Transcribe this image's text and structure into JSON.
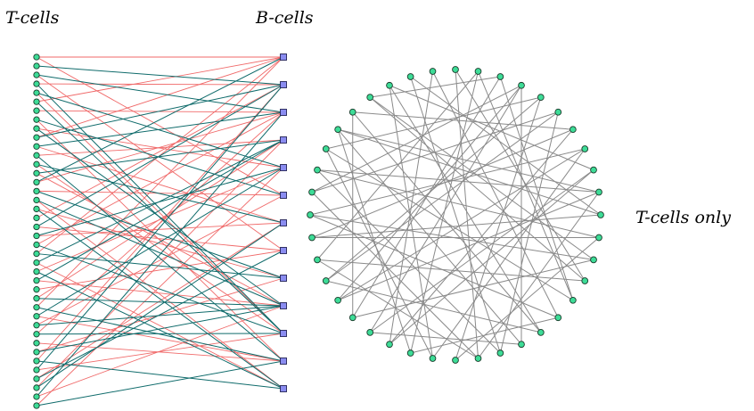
{
  "labels": {
    "left": "T-cells",
    "middle": "B-cells",
    "right": "T-cells only"
  },
  "colors": {
    "t_node": "#3ddc97",
    "t_node_stroke": "#1a3a2a",
    "b_node": "#8a8cf0",
    "b_node_stroke": "#222255",
    "edge_red": "#f06a6a",
    "edge_teal": "#0f6b6b",
    "edge_gray": "#8a8a8a"
  },
  "bipartite": {
    "t_count": 40,
    "b_count": 13,
    "red_edges": [
      [
        0,
        5
      ],
      [
        0,
        0
      ],
      [
        2,
        7
      ],
      [
        3,
        1
      ],
      [
        5,
        0
      ],
      [
        6,
        2
      ],
      [
        8,
        4
      ],
      [
        9,
        0
      ],
      [
        10,
        6
      ],
      [
        11,
        3
      ],
      [
        13,
        9
      ],
      [
        14,
        2
      ],
      [
        15,
        5
      ],
      [
        17,
        8
      ],
      [
        18,
        1
      ],
      [
        20,
        6
      ],
      [
        22,
        0
      ],
      [
        23,
        12
      ],
      [
        24,
        4
      ],
      [
        26,
        7
      ],
      [
        27,
        3
      ],
      [
        29,
        11
      ],
      [
        30,
        5
      ],
      [
        31,
        2
      ],
      [
        33,
        8
      ],
      [
        34,
        1
      ],
      [
        35,
        10
      ],
      [
        36,
        6
      ],
      [
        38,
        9
      ],
      [
        39,
        4
      ],
      [
        12,
        10
      ],
      [
        16,
        12
      ],
      [
        19,
        7
      ],
      [
        25,
        9
      ],
      [
        28,
        0
      ],
      [
        32,
        11
      ],
      [
        37,
        3
      ],
      [
        21,
        2
      ],
      [
        7,
        11
      ],
      [
        4,
        10
      ]
    ],
    "teal_edges": [
      [
        1,
        1
      ],
      [
        2,
        2
      ],
      [
        4,
        4
      ],
      [
        5,
        10
      ],
      [
        7,
        5
      ],
      [
        8,
        9
      ],
      [
        9,
        1
      ],
      [
        10,
        2
      ],
      [
        11,
        11
      ],
      [
        12,
        6
      ],
      [
        13,
        3
      ],
      [
        14,
        0
      ],
      [
        16,
        9
      ],
      [
        17,
        12
      ],
      [
        19,
        1
      ],
      [
        20,
        4
      ],
      [
        21,
        10
      ],
      [
        22,
        8
      ],
      [
        24,
        12
      ],
      [
        25,
        3
      ],
      [
        27,
        9
      ],
      [
        28,
        11
      ],
      [
        29,
        4
      ],
      [
        31,
        10
      ],
      [
        33,
        9
      ],
      [
        34,
        12
      ],
      [
        36,
        7
      ],
      [
        37,
        6
      ],
      [
        38,
        2
      ],
      [
        39,
        11
      ],
      [
        3,
        10
      ],
      [
        15,
        8
      ],
      [
        23,
        3
      ],
      [
        30,
        9
      ],
      [
        35,
        1
      ]
    ]
  },
  "circle": {
    "node_count": 40,
    "edges": [
      [
        0,
        13
      ],
      [
        0,
        19
      ],
      [
        1,
        22
      ],
      [
        1,
        28
      ],
      [
        2,
        14
      ],
      [
        2,
        25
      ],
      [
        3,
        17
      ],
      [
        3,
        31
      ],
      [
        4,
        20
      ],
      [
        4,
        33
      ],
      [
        5,
        18
      ],
      [
        5,
        27
      ],
      [
        6,
        23
      ],
      [
        6,
        35
      ],
      [
        7,
        21
      ],
      [
        7,
        30
      ],
      [
        8,
        24
      ],
      [
        8,
        37
      ],
      [
        9,
        26
      ],
      [
        9,
        34
      ],
      [
        10,
        29
      ],
      [
        10,
        38
      ],
      [
        11,
        32
      ],
      [
        11,
        20
      ],
      [
        12,
        36
      ],
      [
        12,
        25
      ],
      [
        13,
        28
      ],
      [
        14,
        33
      ],
      [
        15,
        30
      ],
      [
        15,
        39
      ],
      [
        16,
        27
      ],
      [
        16,
        35
      ],
      [
        17,
        24
      ],
      [
        18,
        38
      ],
      [
        19,
        31
      ],
      [
        21,
        37
      ],
      [
        22,
        34
      ],
      [
        23,
        39
      ],
      [
        26,
        3
      ],
      [
        29,
        6
      ],
      [
        32,
        9
      ],
      [
        36,
        2
      ],
      [
        1,
        14
      ],
      [
        3,
        24
      ],
      [
        5,
        31
      ],
      [
        7,
        26
      ],
      [
        9,
        19
      ],
      [
        11,
        29
      ],
      [
        13,
        36
      ],
      [
        15,
        22
      ],
      [
        17,
        34
      ],
      [
        19,
        28
      ],
      [
        21,
        33
      ],
      [
        23,
        8
      ],
      [
        25,
        35
      ],
      [
        27,
        4
      ],
      [
        30,
        12
      ],
      [
        32,
        18
      ],
      [
        34,
        10
      ],
      [
        37,
        16
      ]
    ]
  }
}
